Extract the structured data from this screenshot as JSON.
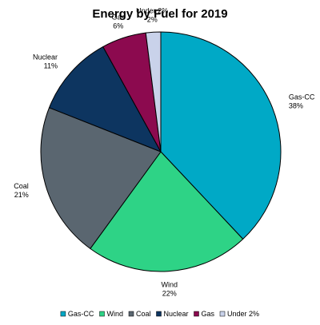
{
  "chart_data": {
    "type": "pie",
    "title": "Energy by Fuel for 2019",
    "start_angle_deg": 90,
    "direction": "clockwise",
    "legend_position": "bottom",
    "slices": [
      {
        "name": "Gas-CC",
        "value": 38,
        "label": "Gas-CC",
        "pct_label": "38%",
        "color": "#00A9C6"
      },
      {
        "name": "Wind",
        "value": 22,
        "label": "Wind",
        "pct_label": "22%",
        "color": "#2ED386"
      },
      {
        "name": "Coal",
        "value": 21,
        "label": "Coal",
        "pct_label": "21%",
        "color": "#5A6670"
      },
      {
        "name": "Nuclear",
        "value": 11,
        "label": "Nuclear",
        "pct_label": "11%",
        "color": "#0D3560"
      },
      {
        "name": "Gas",
        "value": 6,
        "label": "Gas",
        "pct_label": "6%",
        "color": "#8C0A4F"
      },
      {
        "name": "Under 2%",
        "value": 2,
        "label": "Under 2%",
        "pct_label": "2%",
        "color": "#C9D2EA"
      }
    ]
  }
}
